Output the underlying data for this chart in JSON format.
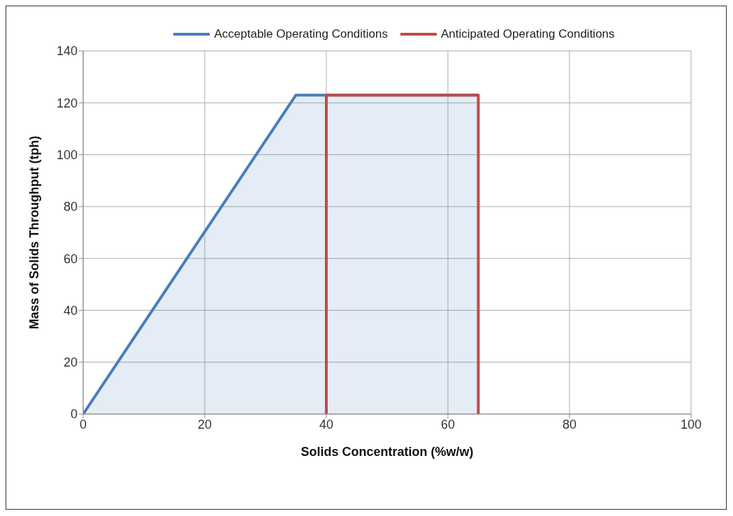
{
  "chart_data": {
    "type": "line",
    "xlabel": "Solids Concentration (%w/w)",
    "ylabel": "Mass of Solids Throughput (tph)",
    "series": [
      {
        "name": "Acceptable Operating Conditions",
        "type": "area",
        "color": "#4a7ebb",
        "x": [
          0,
          35,
          65
        ],
        "values": [
          0,
          123,
          123
        ]
      },
      {
        "name": "Anticipated Operating Conditions",
        "color": "#be4b48",
        "x": [
          40,
          40,
          65,
          65
        ],
        "values": [
          0,
          123,
          123,
          0
        ]
      }
    ],
    "xlim": [
      0,
      100
    ],
    "xticks": [
      0,
      20,
      40,
      60,
      80,
      100
    ],
    "ylim": [
      0,
      140
    ],
    "yticks": [
      0,
      20,
      40,
      60,
      80,
      100,
      120,
      140
    ],
    "grid": true,
    "legend": "top"
  }
}
